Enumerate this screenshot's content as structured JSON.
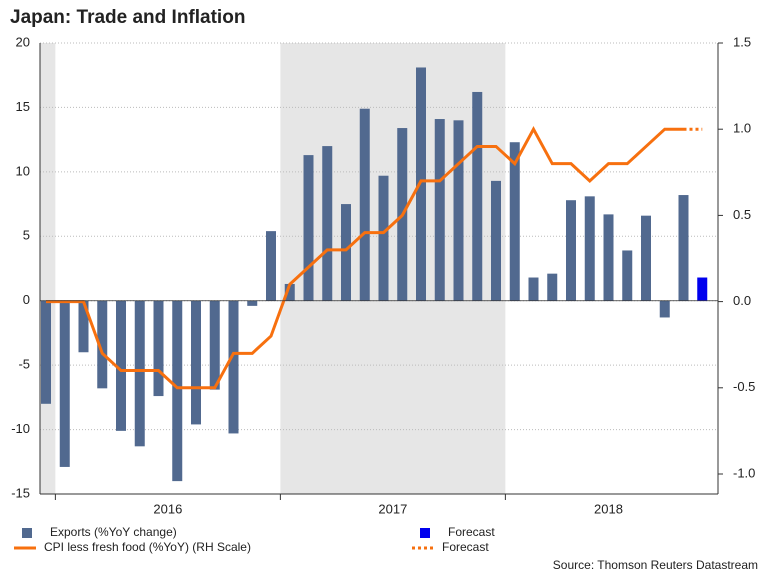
{
  "chart_data": {
    "type": "bar",
    "title": "Japan: Trade and Inflation",
    "source": "Source: Thomson Reuters Datastream",
    "categories": [
      null,
      null,
      null,
      null,
      null,
      null,
      null,
      null,
      null,
      null,
      null,
      null,
      null,
      null,
      null,
      null,
      null,
      null,
      null,
      null,
      null,
      null,
      null,
      null,
      null,
      null,
      null,
      null,
      null,
      null,
      null,
      null,
      null,
      null,
      null,
      null
    ],
    "x_groups": [
      {
        "label": "2016",
        "start": 1,
        "end": 12,
        "shaded": false
      },
      {
        "label": "2017",
        "start": 13,
        "end": 24,
        "shaded": true
      },
      {
        "label": "2018",
        "start": 25,
        "end": 35,
        "shaded": false
      }
    ],
    "shaded_before_first_group": true,
    "series": [
      {
        "name": "Exports (%YoY change)",
        "type": "bar",
        "color": "#51698f",
        "axis": "y",
        "values": [
          -8.0,
          -12.9,
          -4.0,
          -6.8,
          -10.1,
          -11.3,
          -7.4,
          -14.0,
          -9.6,
          -6.9,
          -10.3,
          -0.4,
          5.4,
          1.3,
          11.3,
          12.0,
          7.5,
          14.9,
          9.7,
          13.4,
          18.1,
          14.1,
          14.0,
          16.2,
          9.3,
          12.3,
          1.8,
          2.1,
          7.8,
          8.1,
          6.7,
          3.9,
          6.6,
          -1.3,
          8.2,
          null
        ]
      },
      {
        "name": "Forecast",
        "type": "bar",
        "color": "#0000ee",
        "axis": "y",
        "values": [
          null,
          null,
          null,
          null,
          null,
          null,
          null,
          null,
          null,
          null,
          null,
          null,
          null,
          null,
          null,
          null,
          null,
          null,
          null,
          null,
          null,
          null,
          null,
          null,
          null,
          null,
          null,
          null,
          null,
          null,
          null,
          null,
          null,
          null,
          null,
          1.8
        ]
      },
      {
        "name": "CPI less fresh food (%YoY) (RH Scale)",
        "type": "line",
        "color": "#f7700f",
        "axis": "y2",
        "dash": "solid",
        "values": [
          0.0,
          0.0,
          0.0,
          -0.3,
          -0.4,
          -0.4,
          -0.4,
          -0.5,
          -0.5,
          -0.5,
          -0.3,
          -0.3,
          -0.2,
          0.1,
          0.2,
          0.3,
          0.3,
          0.4,
          0.4,
          0.5,
          0.7,
          0.7,
          0.8,
          0.9,
          0.9,
          0.8,
          1.0,
          0.8,
          0.8,
          0.7,
          0.8,
          0.8,
          0.9,
          1.0,
          1.0,
          null
        ]
      },
      {
        "name": "Forecast",
        "type": "line",
        "color": "#f7700f",
        "axis": "y2",
        "dash": "dotted",
        "values": [
          null,
          null,
          null,
          null,
          null,
          null,
          null,
          null,
          null,
          null,
          null,
          null,
          null,
          null,
          null,
          null,
          null,
          null,
          null,
          null,
          null,
          null,
          null,
          null,
          null,
          null,
          null,
          null,
          null,
          null,
          null,
          null,
          null,
          null,
          1.0,
          1.0
        ]
      }
    ],
    "ylim": [
      -15,
      20
    ],
    "yticks": [
      -15,
      -10,
      -5,
      0,
      5,
      10,
      15,
      20
    ],
    "y2lim": [
      -1.116,
      1.5
    ],
    "y2ticks": [
      {
        "value": -1.0,
        "label": "-1.0"
      },
      {
        "value": -0.5,
        "label": "-0.5"
      },
      {
        "value": 0.0,
        "label": "0.0"
      },
      {
        "value": 0.5,
        "label": "0.5"
      },
      {
        "value": 1.0,
        "label": "1.0"
      },
      {
        "value": 1.5,
        "label": "1.5"
      }
    ],
    "grid": true,
    "legend": "bottom"
  }
}
